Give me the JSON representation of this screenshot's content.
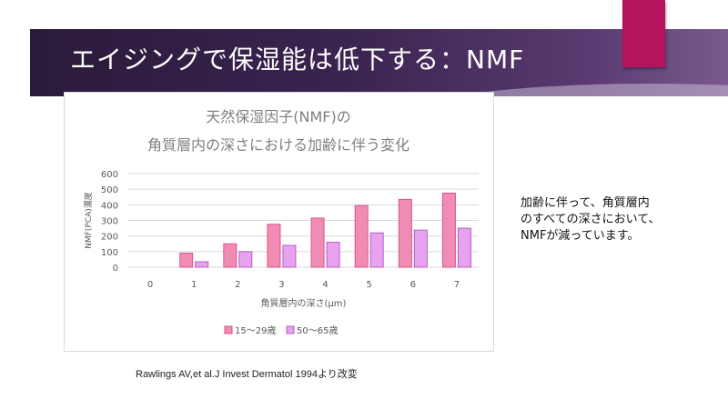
{
  "slide": {
    "title": "エイジングで保湿能は低下する：NMF",
    "side_note_lines": [
      "加齢に伴って、角質層内",
      "のすべての深さにおいて、",
      "NMFが減っています。"
    ],
    "citation": "Rawlings AV,et al.J Invest Dermatol 1994より改変",
    "colors": {
      "accent": "#b5135e",
      "title_band": "#3a2450"
    }
  },
  "chart_data": {
    "type": "bar",
    "title_lines": [
      "天然保湿因子(NMF)の",
      "角質層内の深さにおける加齢に伴う変化"
    ],
    "xlabel": "角質層内の深さ(μm)",
    "ylabel": "NMF(PCA)濃度",
    "categories": [
      "0",
      "1",
      "2",
      "3",
      "4",
      "5",
      "6",
      "7"
    ],
    "y_ticks": [
      "0",
      "100",
      "200",
      "300",
      "400",
      "500",
      "600"
    ],
    "ylim": [
      0,
      600
    ],
    "grid": true,
    "legend_position": "bottom",
    "series": [
      {
        "name": "15～29歳",
        "values": [
          0,
          90,
          150,
          275,
          315,
          395,
          435,
          475
        ],
        "color": "#f08cb4",
        "stroke": "#d8558c"
      },
      {
        "name": "50～65歳",
        "values": [
          0,
          35,
          100,
          140,
          160,
          220,
          238,
          250
        ],
        "color": "#e7a3ee",
        "stroke": "#b85cc4"
      }
    ]
  }
}
